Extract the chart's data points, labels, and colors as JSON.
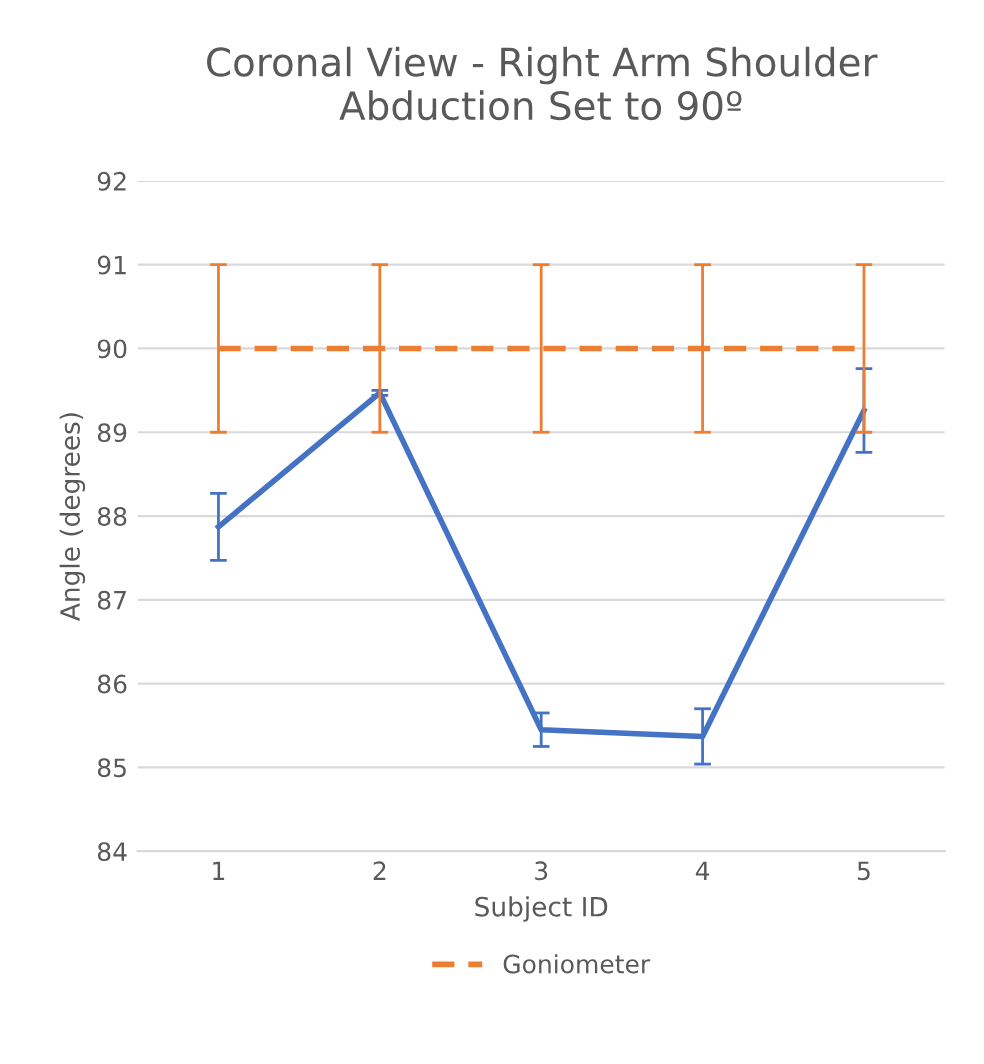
{
  "chart_data": {
    "type": "line",
    "title": "Coronal View - Right Arm Shoulder\nAbduction Set to 90º",
    "xlabel": "Subject ID",
    "ylabel": "Angle (degrees)",
    "categories": [
      "1",
      "2",
      "3",
      "4",
      "5"
    ],
    "series": [
      {
        "color": "#4472c4",
        "values": [
          87.87,
          89.47,
          85.45,
          85.37,
          89.26
        ],
        "errors": [
          0.4,
          0.03,
          0.2,
          0.33,
          0.5
        ],
        "line_style": "solid"
      },
      {
        "name": "Goniometer",
        "color": "#ed7d31",
        "values": [
          90,
          90,
          90,
          90,
          90
        ],
        "errors": [
          1,
          1,
          1,
          1,
          1
        ],
        "line_style": "dashed"
      }
    ],
    "ylim": [
      84,
      92
    ],
    "yticks": [
      84,
      85,
      86,
      87,
      88,
      89,
      90,
      91,
      92
    ],
    "grid": "y",
    "legend": "bottom",
    "marker": "none"
  }
}
